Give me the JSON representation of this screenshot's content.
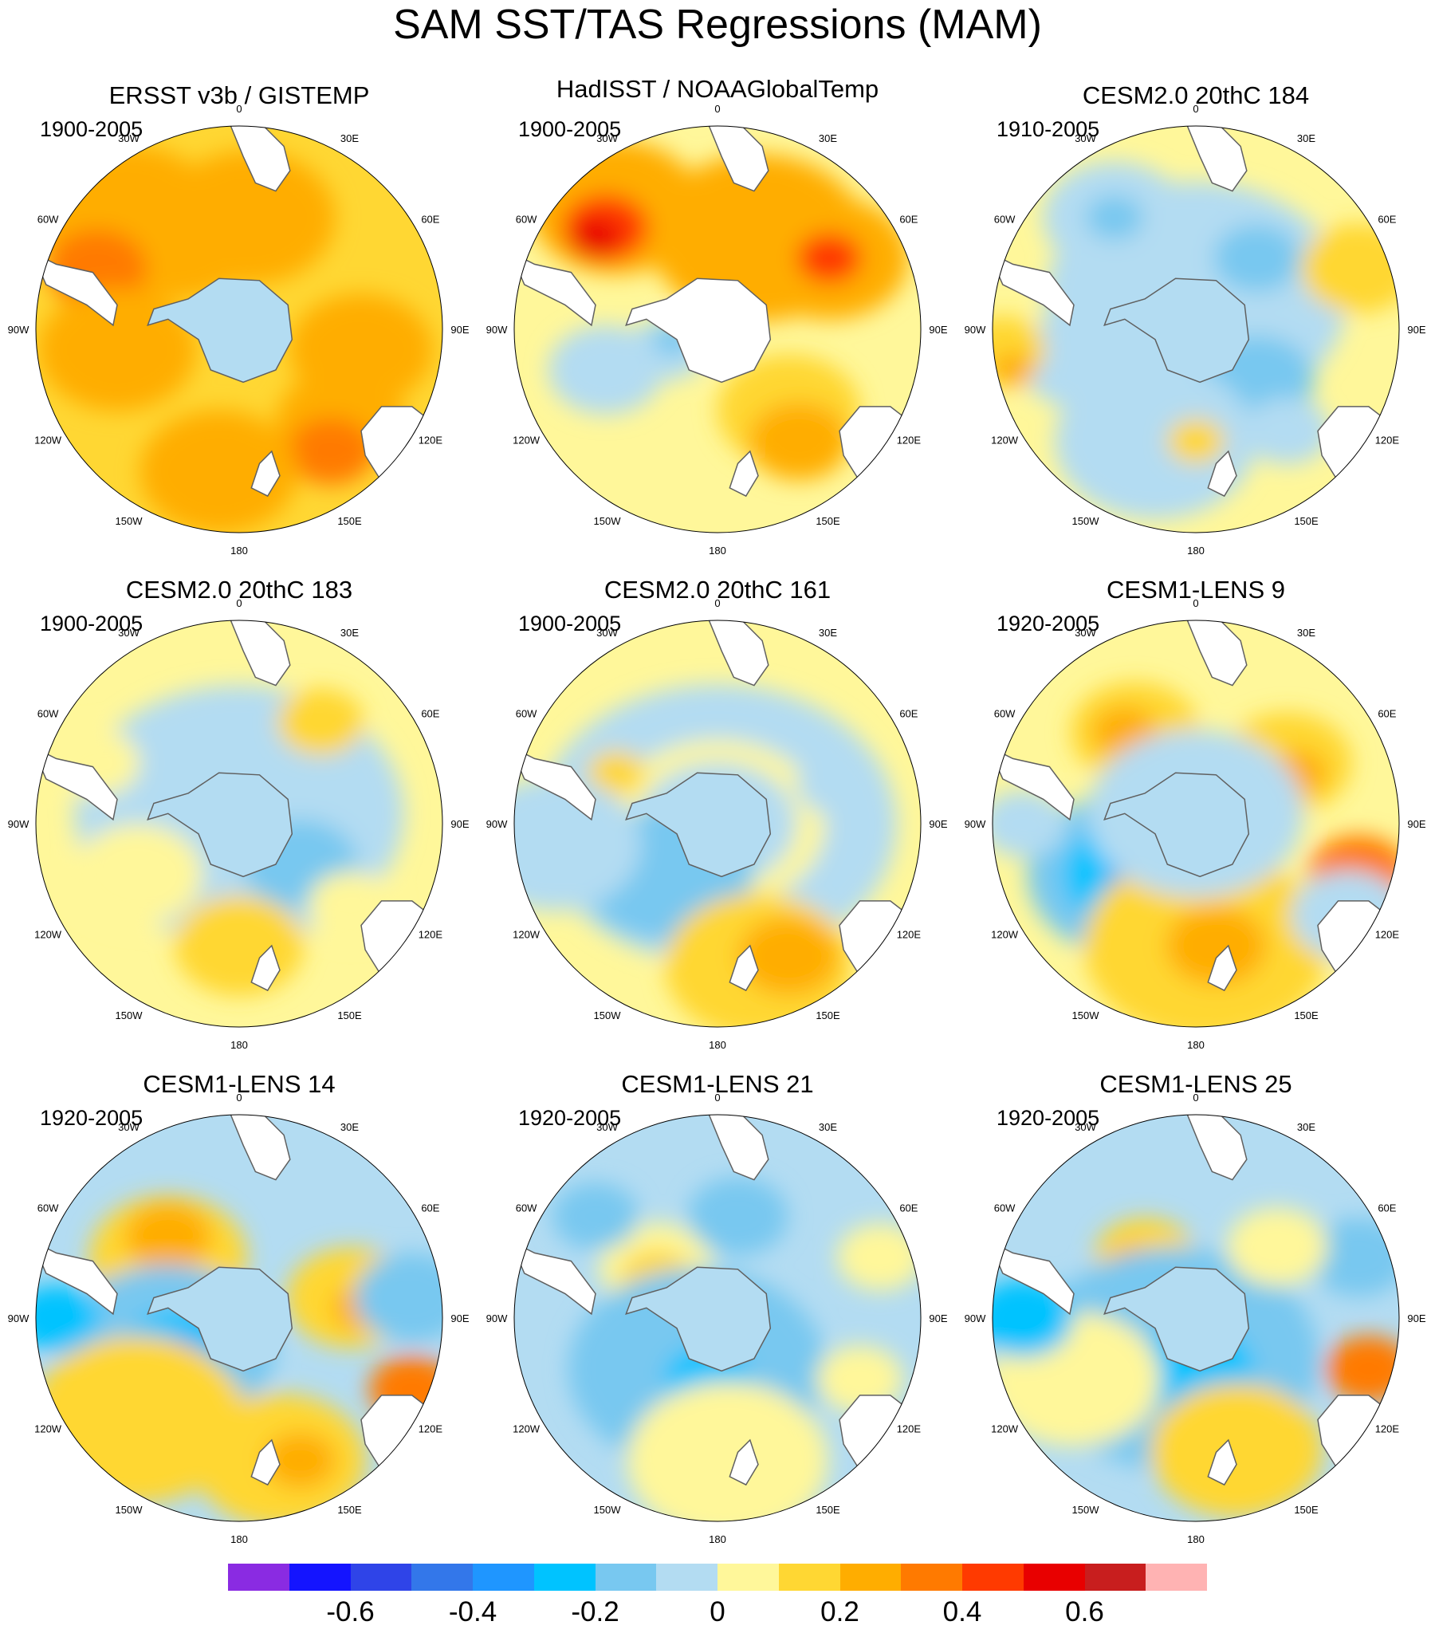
{
  "title": "SAM SST/TAS Regressions (MAM)",
  "colors": {
    "levels": [
      "#8a2be2",
      "#1414ff",
      "#2f44e8",
      "#3377ea",
      "#1f96ff",
      "#00c3ff",
      "#78c8f0",
      "#b3dcf2",
      "#fff79a",
      "#ffd733",
      "#ffad00",
      "#ff7a00",
      "#ff3a00",
      "#e80000",
      "#c81e1e",
      "#ffb3b3"
    ],
    "land_fill": "#ffffff",
    "coast_line": "#606060",
    "frame": "#000000"
  },
  "longitude_labels": [
    "0",
    "30E",
    "60E",
    "90E",
    "120E",
    "150E",
    "180",
    "150W",
    "120W",
    "90W",
    "60W",
    "30W"
  ],
  "panels": [
    {
      "title": "ERSST v3b / GISTEMP",
      "period": "1900-2005",
      "base": 9,
      "blobs": [
        [
          -0.55,
          -0.55,
          130,
          10
        ],
        [
          -0.3,
          -0.45,
          110,
          10
        ],
        [
          0.05,
          -0.55,
          120,
          10
        ],
        [
          -0.7,
          -0.3,
          70,
          11
        ],
        [
          0.5,
          0.45,
          90,
          10
        ],
        [
          0.45,
          0.6,
          60,
          11
        ],
        [
          -0.6,
          0.1,
          110,
          10
        ],
        [
          0.6,
          0.1,
          100,
          10
        ],
        [
          -0.1,
          0.7,
          110,
          10
        ]
      ],
      "hole": 0.24,
      "hole_color": 7,
      "antarctic_land": false
    },
    {
      "title": "HadISST / NOAAGlobalTemp",
      "period": "1900-2005",
      "base": 8,
      "blobs": [
        [
          -0.5,
          -0.6,
          120,
          10
        ],
        [
          -0.55,
          -0.5,
          60,
          12
        ],
        [
          -0.6,
          -0.45,
          35,
          13
        ],
        [
          0.2,
          -0.45,
          150,
          10
        ],
        [
          0.55,
          -0.35,
          110,
          10
        ],
        [
          0.55,
          -0.35,
          45,
          12
        ],
        [
          0.35,
          0.4,
          100,
          9
        ],
        [
          0.4,
          0.55,
          70,
          10
        ],
        [
          -0.55,
          0.2,
          80,
          7
        ],
        [
          -0.25,
          0.1,
          55,
          7
        ],
        [
          -0.22,
          0.05,
          28,
          6
        ]
      ],
      "hole": 0.2,
      "hole_color": 8,
      "antarctic_land": true
    },
    {
      "title": "CESM2.0 20thC 184",
      "period": "1910-2005",
      "base": 8,
      "blobs": [
        [
          0,
          -0.15,
          210,
          7
        ],
        [
          -0.4,
          -0.55,
          100,
          7
        ],
        [
          -0.4,
          -0.55,
          40,
          6
        ],
        [
          0.3,
          -0.35,
          60,
          6
        ],
        [
          -0.55,
          0.15,
          90,
          7
        ],
        [
          0.3,
          0.25,
          80,
          6
        ],
        [
          -0.2,
          0.55,
          140,
          7
        ],
        [
          -0.95,
          0.1,
          60,
          9
        ],
        [
          -0.9,
          0.2,
          30,
          10
        ],
        [
          0.8,
          -0.3,
          80,
          9
        ],
        [
          0,
          0.55,
          40,
          9
        ],
        [
          0.45,
          0.5,
          60,
          7
        ]
      ],
      "hole": 0.22,
      "hole_color": 7,
      "antarctic_land": true
    },
    {
      "title": "CESM2.0 20thC 183",
      "period": "1900-2005",
      "base": 8,
      "blobs": [
        [
          0,
          -0.05,
          230,
          7
        ],
        [
          -0.5,
          0.25,
          90,
          8
        ],
        [
          0.3,
          0.2,
          80,
          6
        ],
        [
          0,
          0.6,
          90,
          9
        ],
        [
          0.4,
          -0.5,
          60,
          9
        ],
        [
          0.55,
          0.4,
          60,
          8
        ],
        [
          -0.7,
          -0.3,
          60,
          8
        ]
      ],
      "hole": 0.23,
      "hole_color": 7,
      "antarctic_land": true
    },
    {
      "title": "CESM2.0 20thC 161",
      "period": "1900-2005",
      "base": 8,
      "blobs": [
        [
          0,
          0,
          250,
          7
        ],
        [
          0,
          0,
          150,
          8
        ],
        [
          0,
          0,
          110,
          7
        ],
        [
          -0.25,
          0.25,
          120,
          6
        ],
        [
          0.2,
          0.7,
          130,
          9
        ],
        [
          0.35,
          0.65,
          70,
          10
        ],
        [
          -0.5,
          -0.25,
          40,
          9
        ],
        [
          -0.8,
          0.1,
          120,
          7
        ],
        [
          0.6,
          -0.2,
          60,
          7
        ]
      ],
      "hole": 0.23,
      "hole_color": 7,
      "antarctic_land": true
    },
    {
      "title": "CESM1-LENS 9",
      "period": "1920-2005",
      "base": 8,
      "blobs": [
        [
          -0.3,
          -0.45,
          90,
          9
        ],
        [
          -0.35,
          -0.45,
          45,
          10
        ],
        [
          0.45,
          -0.3,
          90,
          9
        ],
        [
          0.5,
          -0.25,
          40,
          10
        ],
        [
          -0.3,
          0.25,
          150,
          6
        ],
        [
          -0.3,
          0.25,
          100,
          5
        ],
        [
          -0.25,
          0.28,
          50,
          4
        ],
        [
          0.05,
          0.6,
          170,
          9
        ],
        [
          0.1,
          0.6,
          70,
          10
        ],
        [
          0,
          -0.05,
          150,
          7
        ],
        [
          0.8,
          0.25,
          70,
          11
        ],
        [
          -0.85,
          0,
          60,
          7
        ],
        [
          0.75,
          0.45,
          80,
          7
        ]
      ],
      "hole": 0.2,
      "hole_color": 7,
      "antarctic_land": true
    },
    {
      "title": "CESM1-LENS 14",
      "period": "1920-2005",
      "base": 7,
      "blobs": [
        [
          -0.35,
          -0.3,
          110,
          9
        ],
        [
          -0.35,
          -0.4,
          60,
          10
        ],
        [
          0.55,
          -0.1,
          90,
          9
        ],
        [
          0.6,
          -0.05,
          40,
          10
        ],
        [
          -0.35,
          0.15,
          150,
          6
        ],
        [
          -0.3,
          0.18,
          80,
          5
        ],
        [
          -0.3,
          0.2,
          40,
          4
        ],
        [
          -0.5,
          0.5,
          150,
          9
        ],
        [
          0.2,
          0.7,
          120,
          9
        ],
        [
          0.3,
          0.7,
          50,
          10
        ],
        [
          0.85,
          0.35,
          60,
          11
        ],
        [
          -0.9,
          0,
          60,
          5
        ],
        [
          0.85,
          -0.1,
          80,
          6
        ]
      ],
      "hole": 0.22,
      "hole_color": 7,
      "antarctic_land": true
    },
    {
      "title": "CESM1-LENS 21",
      "period": "1920-2005",
      "base": 7,
      "blobs": [
        [
          -0.3,
          -0.25,
          80,
          8
        ],
        [
          -0.3,
          -0.2,
          50,
          9
        ],
        [
          -0.35,
          0,
          30,
          10
        ],
        [
          -0.1,
          0.25,
          180,
          6
        ],
        [
          -0.05,
          0.3,
          60,
          5
        ],
        [
          0.05,
          0.7,
          140,
          8
        ],
        [
          -0.6,
          -0.5,
          60,
          6
        ],
        [
          0.1,
          -0.5,
          70,
          6
        ],
        [
          0.7,
          0.3,
          60,
          8
        ],
        [
          0.8,
          -0.3,
          60,
          8
        ]
      ],
      "hole": 0.2,
      "hole_color": 7,
      "antarctic_land": true
    },
    {
      "title": "CESM1-LENS 25",
      "period": "1920-2005",
      "base": 7,
      "blobs": [
        [
          -0.25,
          -0.3,
          70,
          9
        ],
        [
          -0.3,
          -0.25,
          40,
          10
        ],
        [
          -0.1,
          0.2,
          200,
          6
        ],
        [
          0,
          0.25,
          80,
          5
        ],
        [
          -0.6,
          0.3,
          120,
          8
        ],
        [
          0.2,
          0.65,
          120,
          9
        ],
        [
          0.85,
          0.25,
          60,
          11
        ],
        [
          -0.85,
          0,
          70,
          5
        ],
        [
          0.8,
          -0.3,
          70,
          6
        ],
        [
          0.4,
          -0.35,
          70,
          8
        ]
      ],
      "hole": 0.2,
      "hole_color": 7,
      "antarctic_land": true
    }
  ],
  "colorbar": {
    "labels": [
      "-0.6",
      "-0.4",
      "-0.2",
      "0",
      "0.2",
      "0.4",
      "0.6"
    ],
    "label_box_positions": [
      2,
      4,
      6,
      8,
      10,
      12,
      14
    ]
  }
}
